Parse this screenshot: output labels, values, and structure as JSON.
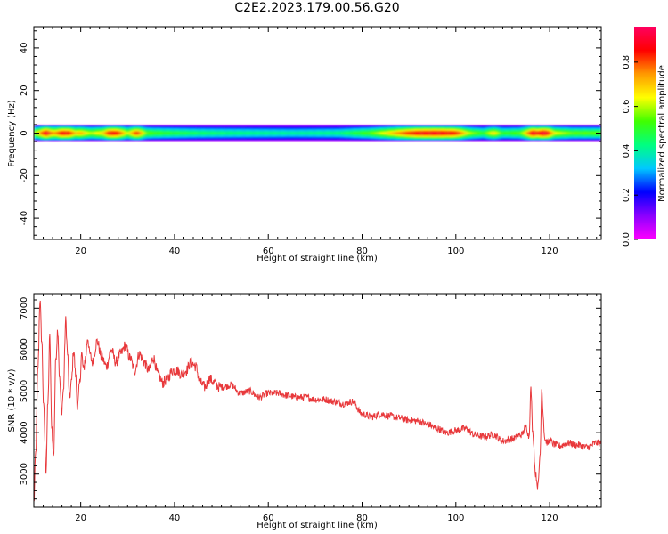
{
  "title": "C2E2.2023.179.00.56.G20",
  "colors": {
    "snr_line": "#e8383b",
    "colormap": [
      "#ff00ff",
      "#8a00ff",
      "#0000ff",
      "#00c8ff",
      "#00ff80",
      "#40ff00",
      "#ffff00",
      "#ff9900",
      "#ff0000",
      "#ff0060"
    ]
  },
  "chart_data": [
    {
      "type": "heatmap",
      "xlabel": "Height of straight line (km)",
      "ylabel": "Frequency (Hz)",
      "xlim": [
        10,
        131
      ],
      "ylim": [
        -50,
        50
      ],
      "xticks": [
        20,
        40,
        60,
        80,
        100,
        120
      ],
      "yticks": [
        -40,
        -20,
        0,
        20,
        40
      ],
      "colorbar": {
        "label": "Normalized spectral amplitude",
        "range": [
          0,
          0.96
        ],
        "ticks": [
          0.0,
          0.2,
          0.4,
          0.6,
          0.8
        ]
      },
      "band": {
        "center_hz": 0,
        "halfwidth_hz": 3,
        "profile": [
          [
            10,
            0.55
          ],
          [
            11,
            0.7
          ],
          [
            12,
            0.85
          ],
          [
            12.8,
            0.96
          ],
          [
            13.5,
            0.8
          ],
          [
            14.5,
            0.75
          ],
          [
            16,
            0.9
          ],
          [
            17.5,
            0.88
          ],
          [
            19,
            0.7
          ],
          [
            20,
            0.75
          ],
          [
            22,
            0.6
          ],
          [
            25,
            0.7
          ],
          [
            26,
            0.9
          ],
          [
            28,
            0.88
          ],
          [
            30,
            0.6
          ],
          [
            32,
            0.88
          ],
          [
            34,
            0.55
          ],
          [
            38,
            0.5
          ],
          [
            45,
            0.45
          ],
          [
            55,
            0.42
          ],
          [
            65,
            0.4
          ],
          [
            75,
            0.42
          ],
          [
            82,
            0.55
          ],
          [
            86,
            0.7
          ],
          [
            90,
            0.85
          ],
          [
            92,
            0.9
          ],
          [
            96,
            0.92
          ],
          [
            100,
            0.88
          ],
          [
            103,
            0.6
          ],
          [
            106,
            0.5
          ],
          [
            108,
            0.7
          ],
          [
            110,
            0.5
          ],
          [
            114,
            0.55
          ],
          [
            116.5,
            0.96
          ],
          [
            117.5,
            0.85
          ],
          [
            118.5,
            0.96
          ],
          [
            119.5,
            0.92
          ],
          [
            121,
            0.65
          ],
          [
            125,
            0.55
          ],
          [
            131,
            0.55
          ]
        ]
      }
    },
    {
      "type": "line",
      "xlabel": "Height of straight line (km)",
      "ylabel": "SNR (10 * v/v)",
      "xlim": [
        10,
        131
      ],
      "ylim": [
        2200,
        7350
      ],
      "xticks": [
        20,
        40,
        60,
        80,
        100,
        120
      ],
      "yticks": [
        3000,
        4000,
        5000,
        6000,
        7000
      ],
      "series": [
        {
          "x": [
            10,
            10.4,
            10.9,
            11.3,
            11.7,
            12.1,
            12.6,
            13.0,
            13.4,
            13.8,
            14.2,
            14.7,
            15.1,
            15.5,
            15.9,
            16.3,
            16.8,
            17.2,
            17.6,
            18.0,
            18.5,
            18.9,
            19.3,
            19.8,
            20.2,
            20.6,
            21.0,
            21.5,
            21.9,
            22.5,
            23.5,
            24.5,
            25.5,
            26.5,
            27.5,
            28.5,
            29.5,
            30.5,
            31.5,
            32.5,
            33.5,
            34.5,
            35.5,
            36.5,
            37.5,
            38.5,
            39.5,
            40.5,
            41.5,
            42.5,
            43.5,
            44.5,
            45.5,
            46.5,
            47.5,
            48.5,
            49.5,
            50.5,
            52,
            54,
            56,
            58,
            60,
            62,
            64,
            66,
            68,
            70,
            72,
            74,
            76,
            78,
            80,
            82,
            84,
            86,
            88,
            90,
            92,
            94,
            96,
            98,
            100,
            102,
            104,
            106,
            108,
            110,
            112,
            114,
            115,
            115.6,
            116,
            116.4,
            117,
            117.5,
            118,
            118.3,
            118.6,
            118.9,
            119.2,
            119.6,
            120,
            121,
            122,
            124,
            126,
            128,
            130,
            131
          ],
          "y": [
            2300,
            3500,
            5600,
            7200,
            6200,
            4600,
            3100,
            4700,
            6300,
            4200,
            3400,
            5800,
            6500,
            5300,
            4500,
            5000,
            6700,
            5900,
            4800,
            5200,
            6000,
            5400,
            4600,
            5200,
            5900,
            5500,
            5800,
            6300,
            5900,
            5700,
            6200,
            5800,
            5600,
            6000,
            5700,
            5900,
            6100,
            5800,
            5500,
            5900,
            5700,
            5500,
            5800,
            5400,
            5200,
            5300,
            5500,
            5500,
            5400,
            5500,
            5700,
            5600,
            5200,
            5100,
            5300,
            5200,
            5100,
            5100,
            5150,
            4950,
            5000,
            4850,
            4950,
            4950,
            4900,
            4850,
            4850,
            4800,
            4800,
            4750,
            4700,
            4750,
            4450,
            4380,
            4450,
            4400,
            4350,
            4300,
            4280,
            4200,
            4100,
            4000,
            4050,
            4100,
            3950,
            3900,
            3950,
            3800,
            3850,
            3950,
            4150,
            3900,
            5050,
            4000,
            3000,
            2700,
            3500,
            5100,
            4500,
            3900,
            3800,
            3750,
            3800,
            3720,
            3680,
            3750,
            3700,
            3650,
            3750,
            3750
          ]
        }
      ]
    }
  ]
}
